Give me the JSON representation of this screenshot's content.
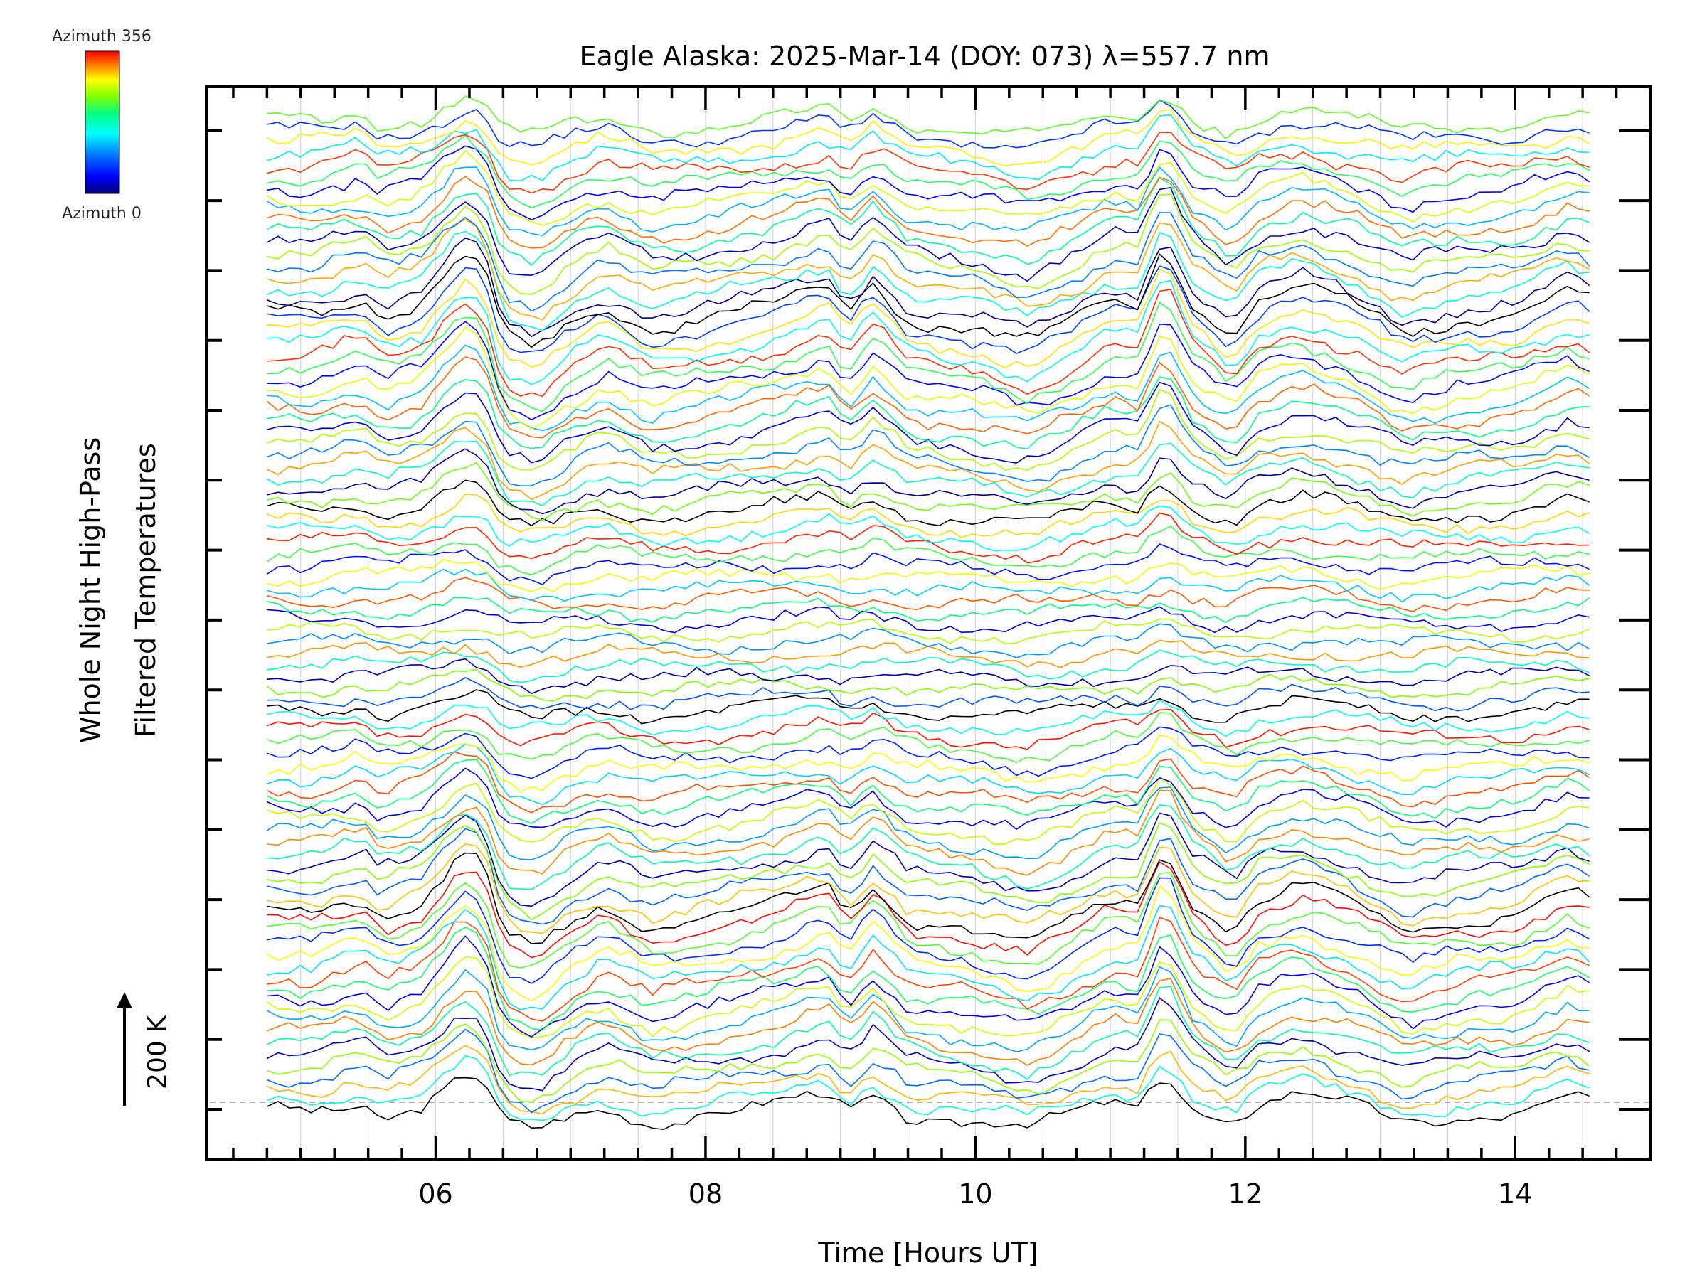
{
  "chart_data": {
    "type": "line",
    "title": "Eagle Alaska: 2025-Mar-14 (DOY: 073) λ=557.7 nm",
    "xlabel": "Time [Hours UT]",
    "ylabel_line1": "Whole Night High-Pass",
    "ylabel_line2": "Filtered Temperatures",
    "xlim": [
      4.3,
      15.0
    ],
    "x_ticks": [
      6,
      8,
      10,
      12,
      14
    ],
    "x_tick_labels": [
      "06",
      "08",
      "10",
      "12",
      "14"
    ],
    "x_range_data": [
      4.75,
      14.55
    ],
    "scale_bar_label": "200 K",
    "grid": true,
    "series_count": 90,
    "colorbar": {
      "top_label": "Azimuth 356",
      "bottom_label": "Azimuth 0",
      "colors": [
        "#ff0000",
        "#ff8000",
        "#ffff00",
        "#80ff00",
        "#00ff80",
        "#00ffff",
        "#0080ff",
        "#0000ff",
        "#000080"
      ]
    },
    "key_times": [
      {
        "t": 4.75,
        "v": 0
      },
      {
        "t": 5.1,
        "v": -2
      },
      {
        "t": 5.45,
        "v": 15
      },
      {
        "t": 5.6,
        "v": -8
      },
      {
        "t": 5.9,
        "v": 8
      },
      {
        "t": 6.2,
        "v": 60
      },
      {
        "t": 6.35,
        "v": 50
      },
      {
        "t": 6.5,
        "v": -30
      },
      {
        "t": 6.75,
        "v": -45
      },
      {
        "t": 7.0,
        "v": -15
      },
      {
        "t": 7.25,
        "v": 5
      },
      {
        "t": 7.6,
        "v": -20
      },
      {
        "t": 8.0,
        "v": -10
      },
      {
        "t": 8.5,
        "v": 5
      },
      {
        "t": 8.9,
        "v": 25
      },
      {
        "t": 9.05,
        "v": -5
      },
      {
        "t": 9.25,
        "v": 30
      },
      {
        "t": 9.5,
        "v": -10
      },
      {
        "t": 10.0,
        "v": -20
      },
      {
        "t": 10.4,
        "v": -35
      },
      {
        "t": 10.7,
        "v": -15
      },
      {
        "t": 11.0,
        "v": 10
      },
      {
        "t": 11.2,
        "v": 5
      },
      {
        "t": 11.4,
        "v": 75
      },
      {
        "t": 11.6,
        "v": 10
      },
      {
        "t": 11.9,
        "v": -25
      },
      {
        "t": 12.1,
        "v": 10
      },
      {
        "t": 12.4,
        "v": 25
      },
      {
        "t": 12.8,
        "v": 5
      },
      {
        "t": 13.2,
        "v": -25
      },
      {
        "t": 13.6,
        "v": -10
      },
      {
        "t": 14.0,
        "v": -5
      },
      {
        "t": 14.4,
        "v": 20
      },
      {
        "t": 14.55,
        "v": 10
      }
    ]
  }
}
